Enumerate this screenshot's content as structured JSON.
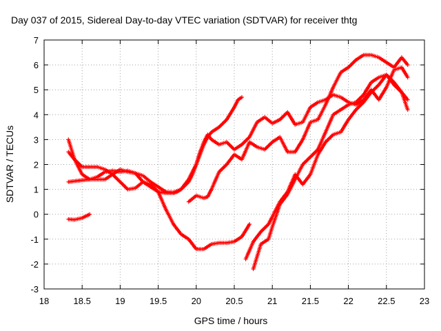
{
  "chart_data": {
    "type": "scatter",
    "title": "Day 037 of 2015, Sidereal Day-to-day VTEC variation (SDTVAR) for receiver thtg",
    "xlabel": "GPS time / hours",
    "ylabel": "SDTVAR / TECUs",
    "xlim": [
      18,
      23
    ],
    "ylim": [
      -3,
      7
    ],
    "xticks": [
      18,
      18.5,
      19,
      19.5,
      20,
      20.5,
      21,
      21.5,
      22,
      22.5,
      23
    ],
    "xtick_labels": [
      "18",
      "18.5",
      "19",
      "19.5",
      "20",
      "20.5",
      "21",
      "21.5",
      "22",
      "22.5",
      "23"
    ],
    "yticks": [
      -3,
      -2,
      -1,
      0,
      1,
      2,
      3,
      4,
      5,
      6,
      7
    ],
    "ytick_labels": [
      "-3",
      "-2",
      "-1",
      "0",
      "1",
      "2",
      "3",
      "4",
      "5",
      "6",
      "7"
    ],
    "grid": true,
    "marker": "+",
    "color": "#ff0000",
    "series": [
      {
        "x": [
          18.32,
          18.4,
          18.5,
          18.6
        ],
        "y": [
          -0.2,
          -0.22,
          -0.15,
          0.0
        ]
      },
      {
        "x": [
          18.32,
          18.4,
          18.5,
          18.6,
          18.7,
          18.8,
          18.9,
          19.0,
          19.1,
          19.2,
          19.3,
          19.4,
          19.5,
          19.6,
          19.7,
          19.75,
          19.8,
          19.85,
          19.9,
          19.95,
          20.0,
          20.05,
          20.1,
          20.15,
          20.2,
          20.3,
          20.4,
          20.5,
          20.55,
          20.6
        ],
        "y": [
          2.5,
          2.2,
          1.6,
          1.4,
          1.5,
          1.7,
          1.75,
          1.7,
          1.75,
          1.65,
          1.3,
          1.1,
          0.9,
          0.85,
          0.85,
          0.9,
          1.0,
          1.2,
          1.4,
          1.7,
          2.0,
          2.4,
          2.8,
          3.1,
          3.3,
          3.5,
          3.8,
          4.3,
          4.6,
          4.7
        ]
      },
      {
        "x": [
          18.32,
          18.45,
          18.6,
          18.8,
          18.9,
          19.0,
          19.1,
          19.2,
          19.3,
          19.4,
          19.5,
          19.6,
          19.7,
          19.8,
          19.9,
          19.95,
          20.0,
          20.05,
          20.1,
          20.15,
          20.2,
          20.3,
          20.4,
          20.5,
          20.6,
          20.7,
          20.8,
          20.9,
          21.0,
          21.1,
          21.2,
          21.3,
          21.4,
          21.5,
          21.6,
          21.7,
          21.8,
          21.9,
          22.0,
          22.1,
          22.2,
          22.3,
          22.4,
          22.5,
          22.6,
          22.7,
          22.78
        ],
        "y": [
          1.3,
          1.35,
          1.4,
          1.4,
          1.6,
          1.8,
          1.7,
          1.65,
          1.55,
          1.3,
          1.1,
          0.9,
          0.88,
          1.0,
          1.3,
          1.6,
          2.0,
          2.5,
          2.9,
          3.2,
          3.0,
          2.8,
          2.9,
          2.6,
          2.8,
          3.1,
          3.7,
          3.9,
          3.65,
          3.8,
          4.1,
          3.6,
          3.7,
          4.3,
          4.5,
          4.6,
          4.8,
          4.7,
          4.5,
          4.4,
          4.6,
          5.0,
          4.6,
          5.1,
          5.8,
          5.9,
          5.5
        ]
      },
      {
        "x": [
          18.32,
          18.4,
          18.5,
          18.6,
          18.7,
          18.8,
          18.9,
          19.0,
          19.1,
          19.2,
          19.3,
          19.4,
          19.5,
          19.6,
          19.7,
          19.8,
          19.9,
          20.0,
          20.1,
          20.2,
          20.3,
          20.4,
          20.5,
          20.6,
          20.7
        ],
        "y": [
          3.0,
          2.2,
          1.9,
          1.9,
          1.9,
          1.8,
          1.6,
          1.3,
          1.0,
          1.05,
          1.3,
          1.2,
          0.9,
          0.2,
          -0.4,
          -0.8,
          -1.0,
          -1.4,
          -1.4,
          -1.2,
          -1.15,
          -1.15,
          -1.1,
          -0.9,
          -0.4
        ]
      },
      {
        "x": [
          19.9,
          20.0,
          20.1,
          20.15,
          20.2,
          20.3,
          20.4,
          20.5,
          20.6,
          20.7,
          20.8,
          20.9,
          21.0,
          21.1,
          21.2,
          21.3,
          21.4,
          21.5,
          21.6,
          21.7,
          21.8,
          21.9,
          22.0,
          22.1,
          22.2,
          22.3,
          22.4,
          22.5,
          22.6,
          22.7,
          22.78
        ],
        "y": [
          0.5,
          0.75,
          0.65,
          0.7,
          1.0,
          1.7,
          2.0,
          2.4,
          2.2,
          2.9,
          2.7,
          2.6,
          2.9,
          3.1,
          2.5,
          2.5,
          3.0,
          3.7,
          3.8,
          4.4,
          5.1,
          5.7,
          5.9,
          6.2,
          6.4,
          6.4,
          6.3,
          6.1,
          5.9,
          6.3,
          6.0
        ]
      },
      {
        "x": [
          20.65,
          20.75,
          20.85,
          20.95,
          21.0,
          21.1,
          21.2,
          21.3,
          21.4,
          21.5,
          21.6,
          21.7,
          21.8,
          21.9,
          22.0,
          22.1,
          22.2,
          22.3,
          22.4,
          22.5,
          22.6,
          22.7,
          22.78
        ],
        "y": [
          -1.8,
          -1.1,
          -0.7,
          -0.4,
          -0.1,
          0.5,
          0.9,
          1.6,
          1.2,
          1.6,
          2.4,
          2.9,
          3.2,
          3.3,
          3.8,
          4.2,
          4.5,
          4.9,
          5.2,
          5.6,
          5.2,
          4.9,
          4.6
        ]
      },
      {
        "x": [
          20.75,
          20.85,
          20.95,
          21.0,
          21.1,
          21.2,
          21.3,
          21.4,
          21.5,
          21.6,
          21.7,
          21.8,
          21.9,
          22.0,
          22.1,
          22.2,
          22.3,
          22.4,
          22.5,
          22.6,
          22.7,
          22.78
        ],
        "y": [
          -2.2,
          -1.2,
          -1.0,
          -0.5,
          0.4,
          0.8,
          1.4,
          2.0,
          2.3,
          2.6,
          3.3,
          4.0,
          4.2,
          4.4,
          4.5,
          4.8,
          5.3,
          5.5,
          5.6,
          5.3,
          4.9,
          4.2
        ]
      }
    ]
  }
}
